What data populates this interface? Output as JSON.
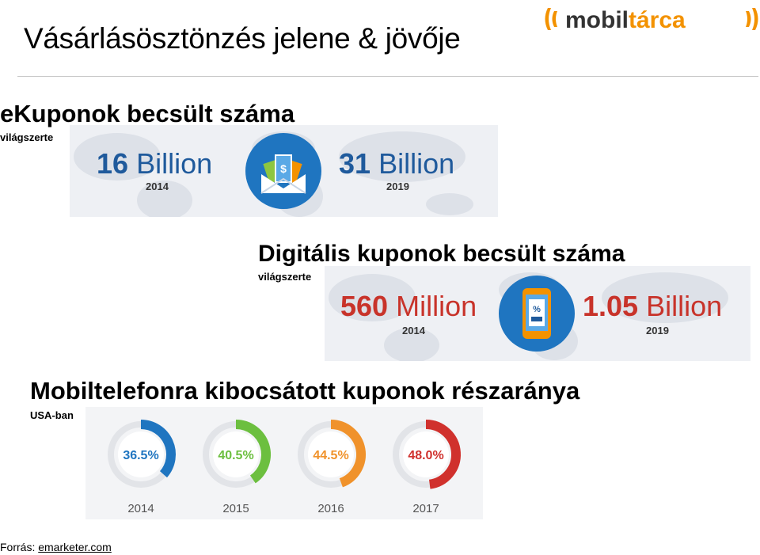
{
  "page": {
    "title": "Vásárlásösztönzés jelene & jövője",
    "logo_text": "mobiltárca"
  },
  "ecoupons": {
    "heading": "eKuponok becsült száma",
    "subheading": "világszerte",
    "left_value": "16",
    "left_unit": "Billion",
    "left_year": "2014",
    "right_value": "31",
    "right_unit": "Billion",
    "right_year": "2019",
    "icon": "envelope-money-icon",
    "value_color": "#1f5a9c",
    "accent_color": "#1f75c0"
  },
  "digital": {
    "heading": "Digitális kuponok becsült száma",
    "subheading": "világszerte",
    "left_value": "560",
    "left_unit": "Million",
    "left_year": "2014",
    "right_value": "1.05",
    "right_unit": "Billion",
    "right_year": "2019",
    "icon": "smartphone-coupon-icon",
    "value_color": "#c8332a",
    "accent_color": "#1f75c0"
  },
  "mobile_share": {
    "heading": "Mobiltelefonra kibocsátott kuponok részaránya",
    "subheading": "USA-ban",
    "items": [
      {
        "label": "36.5%",
        "value": 36.5,
        "year": "2014",
        "color": "#1f75c0"
      },
      {
        "label": "40.5%",
        "value": 40.5,
        "year": "2015",
        "color": "#6cbf3f"
      },
      {
        "label": "44.5%",
        "value": 44.5,
        "year": "2016",
        "color": "#f0922b"
      },
      {
        "label": "48.0%",
        "value": 48.0,
        "year": "2017",
        "color": "#d0312d"
      }
    ]
  },
  "source": {
    "label": "Forrás:",
    "link": "emarketer.com"
  }
}
